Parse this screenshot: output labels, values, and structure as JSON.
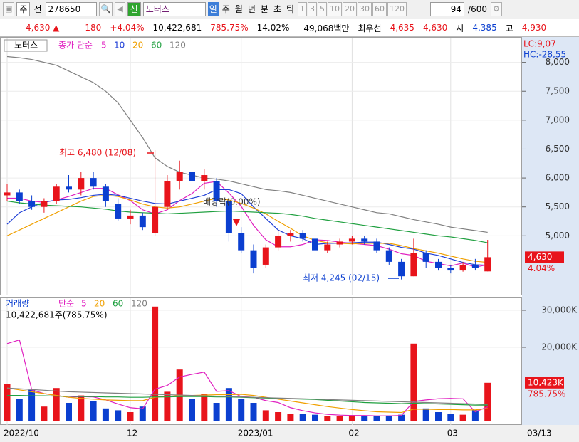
{
  "toolbar": {
    "items": [
      "주",
      "전",
      "278650",
      "신",
      "노터스",
      "일",
      "주",
      "월",
      "년",
      "분",
      "초",
      "틱"
    ],
    "periods": [
      "1",
      "3",
      "5",
      "10",
      "20",
      "30",
      "60",
      "120"
    ],
    "count": "94",
    "count_total": "/600"
  },
  "quote": {
    "price": "4,630 ▲",
    "change": "180",
    "change_rate": "+4.04%",
    "volume": "10,422,681",
    "volume_rate": "785.75%",
    "turnover": "14.02%",
    "amount": "49,068백만",
    "best_label": "최우선",
    "ask": "4,635",
    "bid": "4,630",
    "open_label": "시",
    "open": "4,385",
    "high_label": "고",
    "high": "4,930"
  },
  "chart_data": [
    {
      "type": "candlestick",
      "title": "노터스",
      "legend_title": "종가 단순",
      "up_color": "#e8141b",
      "down_color": "#0b3fd0",
      "open": [
        5700,
        5750,
        5600,
        5500,
        5600,
        5850,
        5800,
        6000,
        5850,
        5550,
        5300,
        5350,
        5050,
        5500,
        5950,
        6100,
        5950,
        5950,
        5600,
        5050,
        4750,
        4500,
        4800,
        5000,
        5050,
        4950,
        4750,
        4850,
        4900,
        4950,
        4900,
        4750,
        4550,
        4300,
        4700,
        4550,
        4450,
        4400,
        4500,
        4385
      ],
      "high": [
        5900,
        5800,
        5700,
        5650,
        5900,
        6050,
        6100,
        6100,
        5900,
        5650,
        5450,
        5400,
        6480,
        6050,
        6300,
        6350,
        6150,
        6000,
        5650,
        5150,
        4850,
        4850,
        5100,
        5100,
        5100,
        5000,
        4900,
        4950,
        5000,
        5000,
        4950,
        4800,
        4600,
        4950,
        4750,
        4600,
        4500,
        4550,
        4600,
        4930
      ],
      "low": [
        5600,
        5550,
        5450,
        5400,
        5550,
        5750,
        5700,
        5800,
        5500,
        5250,
        5200,
        5100,
        5000,
        5450,
        5800,
        5850,
        5800,
        5500,
        4900,
        4700,
        4350,
        4450,
        4750,
        4900,
        4900,
        4700,
        4700,
        4800,
        4850,
        4850,
        4700,
        4500,
        4245,
        4300,
        4450,
        4400,
        4350,
        4380,
        4400,
        4385
      ],
      "close": [
        5750,
        5600,
        5500,
        5600,
        5850,
        5800,
        6000,
        5850,
        5600,
        5300,
        5350,
        5150,
        5500,
        5950,
        6100,
        5950,
        6050,
        5600,
        5050,
        4750,
        4450,
        4800,
        5000,
        5050,
        4950,
        4750,
        4850,
        4900,
        4950,
        4900,
        4750,
        4550,
        4300,
        4700,
        4550,
        4450,
        4400,
        4500,
        4450,
        4630
      ],
      "series": [
        {
          "name": "5",
          "color": "#e020c0",
          "values": [
            5650,
            5650,
            5600,
            5580,
            5620,
            5680,
            5750,
            5820,
            5820,
            5710,
            5610,
            5450,
            5380,
            5450,
            5610,
            5730,
            5910,
            5940,
            5740,
            5510,
            5180,
            4930,
            4810,
            4810,
            4850,
            4930,
            4920,
            4890,
            4870,
            4850,
            4830,
            4770,
            4690,
            4660,
            4560,
            4520,
            4480,
            4530,
            4460,
            4500
          ]
        },
        {
          "name": "10",
          "color": "#1f3fd6",
          "values": [
            5200,
            5400,
            5500,
            5580,
            5620,
            5630,
            5660,
            5700,
            5720,
            5700,
            5650,
            5600,
            5560,
            5550,
            5600,
            5650,
            5700,
            5800,
            5800,
            5730,
            5500,
            5300,
            5100,
            5000,
            4950,
            4850,
            4870,
            4870,
            4880,
            4890,
            4890,
            4850,
            4800,
            4770,
            4700,
            4660,
            4600,
            4540,
            4500,
            4490
          ]
        },
        {
          "name": "20",
          "color": "#f0a000",
          "values": [
            5000,
            5100,
            5200,
            5300,
            5400,
            5500,
            5600,
            5680,
            5700,
            5680,
            5620,
            5550,
            5500,
            5480,
            5500,
            5550,
            5600,
            5650,
            5620,
            5560,
            5480,
            5380,
            5250,
            5130,
            5000,
            4920,
            4880,
            4870,
            4860,
            4870,
            4870,
            4870,
            4830,
            4780,
            4740,
            4700,
            4650,
            4600,
            4560,
            4540
          ]
        },
        {
          "name": "60",
          "color": "#20a040",
          "values": [
            5600,
            5570,
            5550,
            5530,
            5520,
            5510,
            5500,
            5480,
            5460,
            5430,
            5410,
            5400,
            5390,
            5380,
            5390,
            5400,
            5410,
            5420,
            5430,
            5420,
            5410,
            5400,
            5390,
            5370,
            5340,
            5300,
            5270,
            5240,
            5210,
            5180,
            5150,
            5120,
            5090,
            5060,
            5030,
            5000,
            4980,
            4950,
            4920,
            4880
          ]
        },
        {
          "name": "120",
          "color": "#808080",
          "values": [
            8100,
            8080,
            8050,
            8000,
            7950,
            7850,
            7750,
            7650,
            7500,
            7300,
            7000,
            6700,
            6350,
            6200,
            6100,
            6050,
            6000,
            5980,
            5950,
            5900,
            5850,
            5800,
            5780,
            5750,
            5700,
            5650,
            5600,
            5550,
            5500,
            5450,
            5400,
            5380,
            5330,
            5280,
            5240,
            5200,
            5150,
            5120,
            5090,
            5060
          ]
        }
      ],
      "ylim": [
        3970,
        8340
      ],
      "yticks": [
        {
          "value": 5000,
          "label": "5,000"
        },
        {
          "value": 5500,
          "label": "5,500"
        },
        {
          "value": 6000,
          "label": "6,000"
        },
        {
          "value": 6500,
          "label": "6,500"
        },
        {
          "value": 7000,
          "label": "7,000"
        },
        {
          "value": 7500,
          "label": "7,500"
        },
        {
          "value": 8000,
          "label": "8,000"
        }
      ],
      "annotations": [
        "최고 6,480 (12/08)",
        "최저 4,245 (02/15)",
        "배당락(0.00%)"
      ],
      "lc_label": "LC:9,07",
      "hc_label": "HC:-28,55",
      "last_price_label": "4,630",
      "last_change_label": "4.04%"
    },
    {
      "type": "bar",
      "title": "거래량",
      "legend_title": "단순",
      "subtitle": "10,422,681주(785.75%)",
      "values": [
        10000,
        6000,
        8500,
        4000,
        9000,
        5000,
        7000,
        5500,
        3500,
        3000,
        2500,
        4000,
        31000,
        8000,
        14000,
        6000,
        7500,
        5000,
        9000,
        6000,
        5000,
        3000,
        2500,
        2000,
        2000,
        1800,
        1500,
        1500,
        1700,
        1500,
        1400,
        1600,
        1800,
        21000,
        3500,
        2500,
        2000,
        1800,
        3000,
        10423
      ],
      "series": [
        {
          "name": "5",
          "color": "#e020c0",
          "values": [
            21000,
            22000,
            8500,
            7500,
            7000,
            6500,
            6700,
            6600,
            5800,
            4700,
            3700,
            3400,
            8700,
            9700,
            12000,
            12700,
            13300,
            8100,
            8300,
            6700,
            6500,
            5600,
            5100,
            3700,
            2900,
            2300,
            1900,
            1700,
            1600,
            1600,
            1500,
            1500,
            1600,
            5400,
            5800,
            6100,
            6200,
            6100,
            2600,
            3900
          ]
        },
        {
          "name": "20",
          "color": "#f0a000",
          "values": [
            9000,
            8500,
            8000,
            7500,
            7000,
            6500,
            6200,
            6000,
            5800,
            5700,
            5600,
            5600,
            6500,
            6700,
            7000,
            7000,
            7100,
            7200,
            7200,
            7300,
            7000,
            6500,
            6000,
            5500,
            5000,
            4500,
            4000,
            3600,
            3200,
            2900,
            2600,
            2500,
            2400,
            3300,
            3300,
            3200,
            3200,
            3100,
            3100,
            3500
          ]
        },
        {
          "name": "60",
          "color": "#20a040",
          "values": [
            7000,
            7000,
            6900,
            6900,
            6800,
            6800,
            6700,
            6700,
            6600,
            6600,
            6500,
            6500,
            6600,
            6600,
            6700,
            6700,
            6700,
            6600,
            6600,
            6500,
            6400,
            6300,
            6200,
            6100,
            6000,
            5900,
            5700,
            5500,
            5300,
            5100,
            5000,
            4900,
            4800,
            4900,
            4800,
            4700,
            4600,
            4500,
            4400,
            4400
          ]
        },
        {
          "name": "120",
          "color": "#808080",
          "values": [
            9000,
            8800,
            8600,
            8400,
            8200,
            8000,
            7900,
            7800,
            7700,
            7600,
            7500,
            7400,
            7300,
            7200,
            7100,
            7000,
            6900,
            6800,
            6700,
            6600,
            6500,
            6400,
            6300,
            6200,
            6100,
            6000,
            5900,
            5800,
            5700,
            5600,
            5500,
            5400,
            5300,
            5200,
            5100,
            5000,
            4900,
            4800,
            4700,
            4600
          ]
        }
      ],
      "categories": [
        "2022/10",
        null,
        null,
        null,
        null,
        null,
        null,
        null,
        null,
        null,
        "12",
        null,
        null,
        null,
        null,
        null,
        null,
        null,
        null,
        "2023/01",
        null,
        null,
        null,
        null,
        null,
        null,
        null,
        null,
        "02",
        null,
        null,
        null,
        null,
        null,
        null,
        null,
        "03",
        null,
        null,
        null
      ],
      "x_end_label": "03/13",
      "ylim": [
        -960,
        33460
      ],
      "yticks": [
        {
          "value": 20000,
          "label": "20,000K"
        },
        {
          "value": 30000,
          "label": "30,000K"
        }
      ],
      "last_value_label": "10,423K",
      "last_rate_label": "785.75%"
    }
  ]
}
